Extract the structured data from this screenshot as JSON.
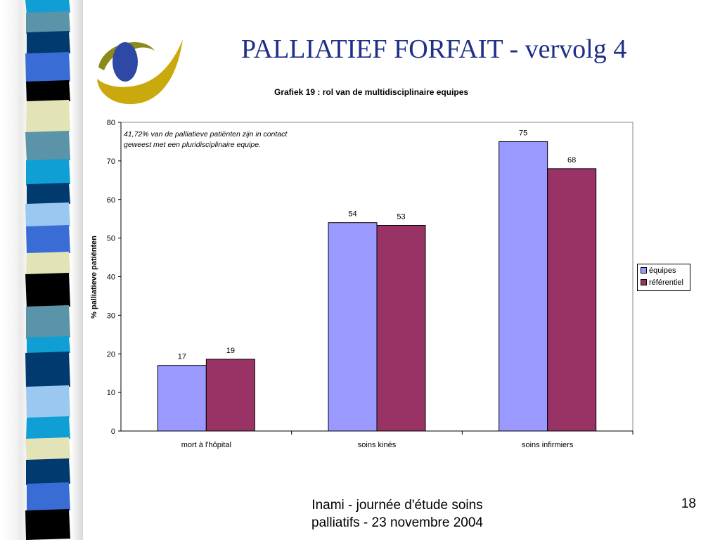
{
  "slide": {
    "title": "PALLIATIEF FORFAIT  - vervolg 4",
    "footer": "Inami - journée d'étude soins palliatifs - 23 novembre 2004",
    "page_number": "18"
  },
  "colors": {
    "title": "#1f2f86",
    "series_equipes": "#9999ff",
    "series_referentiel": "#993366",
    "logo_blue": "#2e49a3",
    "logo_gold": "#c9a90b"
  },
  "chart_data": {
    "type": "bar",
    "title": "Grafiek 19 : rol van de multidisciplinaire equipes",
    "ylabel": "% palliatieve patiënten",
    "xlabel": "",
    "categories": [
      "mort à l'hôpital",
      "soins kinés",
      "soins infirmiers"
    ],
    "series": [
      {
        "name": "équipes",
        "values": [
          17,
          54,
          75
        ],
        "labels": [
          "17",
          "54",
          "75"
        ]
      },
      {
        "name": "référentiel",
        "values": [
          18.6,
          53.3,
          68
        ],
        "labels": [
          "19",
          "53",
          "68"
        ]
      }
    ],
    "ylim": [
      0,
      80
    ],
    "yticks": [
      "0",
      "10",
      "20",
      "30",
      "40",
      "50",
      "60",
      "70",
      "80"
    ],
    "grid": false,
    "legend_position": "right",
    "annotation": [
      "41,72% van de palliatieve patiënten zijn in contact",
      "geweest met een pluridisciplinaire equipe."
    ]
  }
}
